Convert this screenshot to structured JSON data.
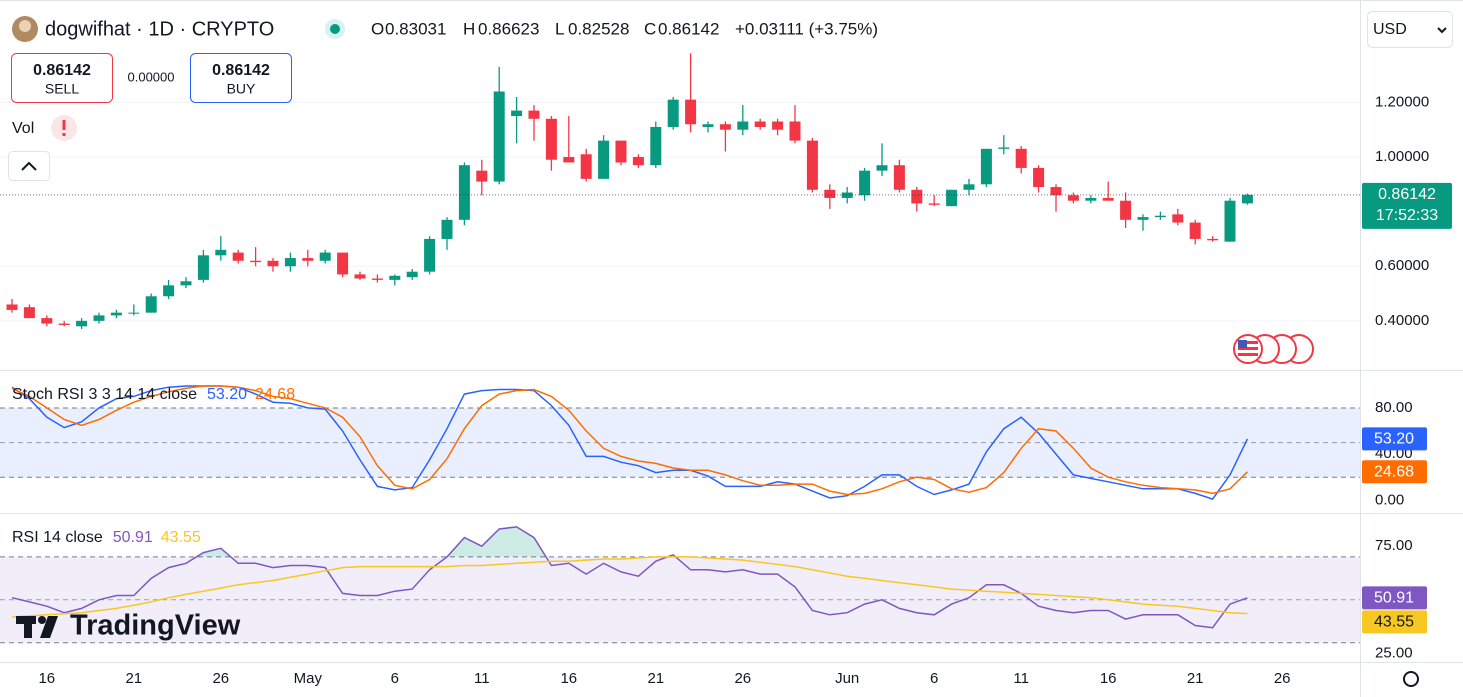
{
  "header": {
    "symbol": "dogwifhat · 1D · CRYPTO",
    "ohlc_letters": [
      "O",
      "H",
      "L",
      "C"
    ],
    "change": "+0.03111 (+3.75%)",
    "sell": "SELL",
    "spread": "0.00000",
    "buy": "BUY",
    "volume": "Vol",
    "currency": "USD",
    "logo": "TradingView"
  },
  "chart_data": [
    {
      "type": "candlestick",
      "categories": [
        null,
        null,
        "16",
        null,
        null,
        null,
        null,
        "21",
        null,
        null,
        null,
        null,
        "26",
        null,
        null,
        null,
        null,
        "May",
        null,
        null,
        null,
        null,
        "6",
        null,
        null,
        null,
        null,
        "11",
        null,
        null,
        null,
        null,
        "16",
        null,
        null,
        null,
        null,
        "21",
        null,
        null,
        null,
        null,
        "26",
        null,
        null,
        null,
        null,
        null,
        "Jun",
        null,
        null,
        null,
        null,
        "6",
        null,
        null,
        null,
        null,
        "11",
        null,
        null,
        null,
        null,
        "16",
        null,
        null,
        null,
        null,
        "21",
        null,
        null,
        null,
        null,
        "26"
      ],
      "open": [
        0.46,
        0.45,
        0.41,
        0.39,
        0.38,
        0.4,
        0.42,
        0.43,
        0.43,
        0.49,
        0.53,
        0.55,
        0.64,
        0.65,
        0.62,
        0.62,
        0.6,
        0.63,
        0.62,
        0.65,
        0.57,
        0.555,
        0.55,
        0.56,
        0.58,
        0.7,
        0.77,
        0.95,
        0.91,
        1.15,
        1.17,
        1.14,
        1.0,
        1.01,
        0.92,
        1.06,
        1.0,
        0.97,
        1.11,
        1.21,
        1.11,
        1.12,
        1.1,
        1.13,
        1.13,
        1.13,
        1.06,
        0.88,
        0.85,
        0.86,
        0.95,
        0.97,
        0.88,
        0.83,
        0.82,
        0.88,
        0.9,
        1.03,
        1.03,
        0.96,
        0.89,
        0.86,
        0.84,
        0.85,
        0.84,
        0.77,
        0.78,
        0.79,
        0.76,
        0.7,
        0.69,
        0.83031,
        null,
        null
      ],
      "high": [
        0.48,
        0.46,
        0.42,
        0.4,
        0.41,
        0.43,
        0.44,
        0.46,
        0.5,
        0.55,
        0.56,
        0.66,
        0.71,
        0.66,
        0.67,
        0.63,
        0.65,
        0.66,
        0.66,
        0.65,
        0.58,
        0.57,
        0.57,
        0.59,
        0.71,
        0.78,
        0.98,
        0.99,
        1.33,
        1.22,
        1.19,
        1.15,
        1.15,
        1.03,
        1.08,
        1.06,
        1.01,
        1.13,
        1.22,
        1.38,
        1.13,
        1.13,
        1.19,
        1.14,
        1.14,
        1.19,
        1.07,
        0.9,
        0.89,
        0.96,
        1.05,
        0.99,
        0.89,
        0.86,
        0.88,
        0.92,
        1.03,
        1.08,
        1.04,
        0.97,
        0.9,
        0.87,
        0.86,
        0.91,
        0.87,
        0.79,
        0.8,
        0.81,
        0.77,
        0.71,
        0.85,
        0.86623,
        null,
        null
      ],
      "low": [
        0.43,
        0.41,
        0.38,
        0.38,
        0.37,
        0.39,
        0.41,
        0.42,
        0.43,
        0.48,
        0.52,
        0.54,
        0.62,
        0.61,
        0.6,
        0.58,
        0.58,
        0.6,
        0.61,
        0.56,
        0.55,
        0.54,
        0.53,
        0.55,
        0.57,
        0.66,
        0.75,
        0.86,
        0.9,
        1.05,
        1.06,
        0.95,
        0.98,
        0.91,
        0.92,
        0.97,
        0.96,
        0.96,
        1.1,
        1.09,
        1.09,
        1.02,
        1.08,
        1.1,
        1.08,
        1.05,
        0.87,
        0.81,
        0.83,
        0.84,
        0.93,
        0.87,
        0.8,
        0.82,
        0.82,
        0.86,
        0.89,
        1.01,
        0.94,
        0.87,
        0.8,
        0.83,
        0.83,
        0.84,
        0.74,
        0.73,
        0.77,
        0.75,
        0.68,
        0.69,
        0.69,
        0.82528,
        null,
        null
      ],
      "close": [
        0.44,
        0.41,
        0.39,
        0.385,
        0.4,
        0.42,
        0.43,
        0.43,
        0.49,
        0.53,
        0.545,
        0.64,
        0.66,
        0.62,
        0.615,
        0.6,
        0.63,
        0.62,
        0.65,
        0.57,
        0.555,
        0.55,
        0.565,
        0.58,
        0.7,
        0.77,
        0.97,
        0.91,
        1.24,
        1.17,
        1.14,
        0.99,
        0.98,
        0.92,
        1.06,
        0.98,
        0.97,
        1.11,
        1.21,
        1.12,
        1.12,
        1.1,
        1.13,
        1.11,
        1.1,
        1.06,
        0.88,
        0.85,
        0.87,
        0.95,
        0.97,
        0.88,
        0.83,
        0.825,
        0.88,
        0.9,
        1.03,
        1.035,
        0.96,
        0.89,
        0.86,
        0.84,
        0.85,
        0.84,
        0.77,
        0.78,
        0.785,
        0.76,
        0.7,
        0.695,
        0.84,
        0.86142,
        null,
        null
      ],
      "up_color": "#089981",
      "down_color": "#f23645",
      "ylim": [
        0.22,
        1.575
      ],
      "yticks": [
        {
          "value": 0.4,
          "label": "0.40000"
        },
        {
          "value": 0.6,
          "label": "0.60000"
        },
        {
          "value": 1,
          "label": "1.00000"
        },
        {
          "value": 1.2,
          "label": "1.20000"
        }
      ],
      "grid": true,
      "countdown": "17:52:33"
    },
    {
      "type": "line",
      "title": "Stoch RSI 3 3 14 14 close",
      "series": [
        {
          "color": "#2962ff",
          "values": [
            98,
            88,
            72,
            63,
            68,
            80,
            88,
            90,
            95,
            98,
            99,
            99,
            99,
            98,
            92,
            85,
            84,
            80,
            79,
            60,
            35,
            12,
            9,
            11,
            35,
            62,
            92,
            95,
            96,
            96,
            95,
            82,
            65,
            38,
            38,
            33,
            30,
            24,
            26,
            26,
            21,
            12,
            12,
            12,
            16,
            14,
            8,
            2,
            4,
            12,
            22,
            22,
            12,
            5,
            9,
            14,
            42,
            62,
            72,
            58,
            40,
            22,
            19,
            16,
            13,
            10,
            10,
            10,
            6,
            1,
            22,
            53.2,
            null,
            null
          ],
          "value_labels": [
            null,
            null,
            null,
            null,
            null,
            null,
            null,
            null,
            null,
            null,
            null,
            null,
            null,
            null,
            null,
            null,
            null,
            null,
            null,
            null,
            null,
            null,
            null,
            null,
            null,
            null,
            null,
            null,
            null,
            null,
            null,
            null,
            null,
            null,
            null,
            null,
            null,
            null,
            null,
            null,
            null,
            null,
            null,
            null,
            null,
            null,
            null,
            null,
            null,
            null,
            null,
            null,
            null,
            null,
            null,
            null,
            null,
            null,
            null,
            null,
            null,
            null,
            null,
            null,
            null,
            null,
            null,
            null,
            null,
            null,
            null,
            "53.20",
            null,
            null
          ]
        },
        {
          "color": "#ff6d00",
          "values": [
            97,
            90,
            80,
            70,
            65,
            70,
            78,
            85,
            90,
            94,
            97,
            99,
            99,
            98,
            95,
            90,
            88,
            84,
            80,
            72,
            55,
            30,
            13,
            10,
            18,
            36,
            62,
            82,
            92,
            95,
            96,
            90,
            78,
            60,
            45,
            38,
            34,
            32,
            28,
            26,
            26,
            22,
            17,
            13,
            13,
            14,
            14,
            8,
            5,
            6,
            10,
            16,
            20,
            18,
            10,
            7,
            11,
            24,
            45,
            62,
            60,
            45,
            28,
            20,
            16,
            13,
            11,
            10,
            9,
            6,
            10,
            24.68,
            null,
            null
          ],
          "value_labels": [
            null,
            null,
            null,
            null,
            null,
            null,
            null,
            null,
            null,
            null,
            null,
            null,
            null,
            null,
            null,
            null,
            null,
            null,
            null,
            null,
            null,
            null,
            null,
            null,
            null,
            null,
            null,
            null,
            null,
            null,
            null,
            null,
            null,
            null,
            null,
            null,
            null,
            null,
            null,
            null,
            null,
            null,
            null,
            null,
            null,
            null,
            null,
            null,
            null,
            null,
            null,
            null,
            null,
            null,
            null,
            null,
            null,
            null,
            null,
            null,
            null,
            null,
            null,
            null,
            null,
            null,
            null,
            null,
            null,
            null,
            null,
            "24.68",
            null,
            null
          ]
        }
      ],
      "ylim": [
        -11,
        112
      ],
      "yticks": [
        {
          "value": 0,
          "label": "0.00"
        },
        {
          "value": 40,
          "label": "40.00"
        },
        {
          "value": 80,
          "label": "80.00"
        }
      ],
      "band": [
        20,
        80
      ],
      "midline": 50,
      "band_color": "#2962ff"
    },
    {
      "type": "line",
      "title": "RSI 14 close",
      "series": [
        {
          "color": "#7e57c2",
          "values": [
            51,
            49,
            47,
            44,
            46,
            50,
            52,
            52,
            60,
            65,
            67,
            72,
            74,
            67,
            67,
            65,
            66,
            66,
            65,
            53,
            52,
            52,
            54,
            55,
            64,
            70,
            79,
            75,
            83,
            84,
            79,
            66,
            67,
            62,
            67,
            63,
            61,
            68,
            71,
            64,
            64,
            63,
            64,
            62,
            62,
            56,
            45,
            43,
            44,
            48,
            50,
            46,
            44,
            43,
            48,
            51,
            57,
            57,
            53,
            47,
            45,
            44,
            45,
            45,
            41,
            43,
            43,
            43,
            38,
            37,
            48,
            50.91,
            null,
            null
          ],
          "value_labels": [
            null,
            null,
            null,
            null,
            null,
            null,
            null,
            null,
            null,
            null,
            null,
            null,
            null,
            null,
            null,
            null,
            null,
            null,
            null,
            null,
            null,
            null,
            null,
            null,
            null,
            null,
            null,
            null,
            null,
            null,
            null,
            null,
            null,
            null,
            null,
            null,
            null,
            null,
            null,
            null,
            null,
            null,
            null,
            null,
            null,
            null,
            null,
            null,
            null,
            null,
            null,
            null,
            null,
            null,
            null,
            null,
            null,
            null,
            null,
            null,
            null,
            null,
            null,
            null,
            null,
            null,
            null,
            null,
            null,
            null,
            null,
            "50.91",
            null,
            null
          ]
        },
        {
          "color": "#f7c823",
          "values": [
            42,
            42.5,
            43,
            43.5,
            44,
            45,
            46,
            47.5,
            49,
            51,
            52.5,
            54,
            55.5,
            57,
            58,
            59,
            60.5,
            62,
            63.5,
            65,
            65.5,
            65.5,
            65.5,
            65.5,
            65.5,
            65.5,
            66,
            66,
            66.5,
            67,
            67.5,
            68,
            68,
            68.5,
            69,
            69,
            69.5,
            70,
            70,
            70,
            69.5,
            69,
            68.5,
            67.5,
            66.5,
            65.5,
            64,
            62.5,
            61,
            60,
            59,
            58,
            57,
            56,
            55,
            54.5,
            54,
            53.5,
            53,
            52.5,
            52,
            51.5,
            51,
            50,
            49,
            48,
            47.5,
            47,
            46,
            45,
            44,
            43.55,
            null,
            null
          ],
          "value_labels": [
            null,
            null,
            null,
            null,
            null,
            null,
            null,
            null,
            null,
            null,
            null,
            null,
            null,
            null,
            null,
            null,
            null,
            null,
            null,
            null,
            null,
            null,
            null,
            null,
            null,
            null,
            null,
            null,
            null,
            null,
            null,
            null,
            null,
            null,
            null,
            null,
            null,
            null,
            null,
            null,
            null,
            null,
            null,
            null,
            null,
            null,
            null,
            null,
            null,
            null,
            null,
            null,
            null,
            null,
            null,
            null,
            null,
            null,
            null,
            null,
            null,
            null,
            null,
            null,
            null,
            null,
            null,
            null,
            null,
            null,
            null,
            "43.55",
            null,
            null
          ]
        }
      ],
      "ylim": [
        21,
        90
      ],
      "yticks": [
        {
          "value": 25,
          "label": "25.00"
        },
        {
          "value": 75,
          "label": "75.00"
        }
      ],
      "band": [
        30,
        70
      ],
      "midline": 50,
      "band_color": "#7e57c2",
      "overbought_fill": "#089981"
    }
  ]
}
